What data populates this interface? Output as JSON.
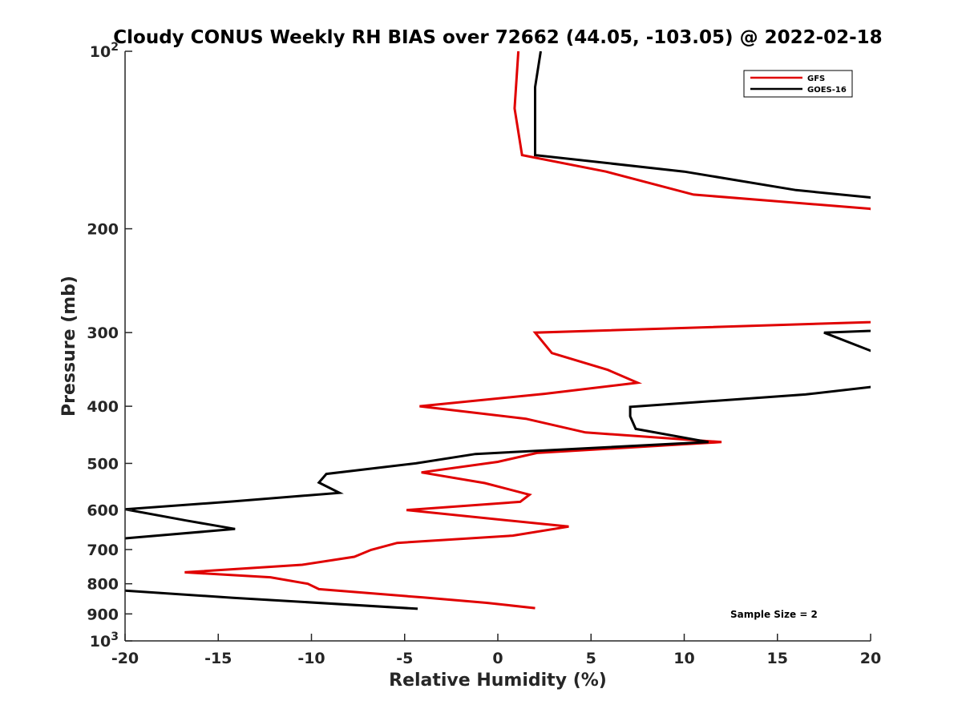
{
  "chart_data": {
    "type": "line",
    "title": "Cloudy CONUS Weekly RH BIAS over 72662 (44.05, -103.05) @ 2022-02-18",
    "xlabel": "Relative Humidity (%)",
    "ylabel": "Pressure (mb)",
    "xlim": [
      -20,
      20
    ],
    "ylim": [
      100,
      1000
    ],
    "yscale": "log",
    "y_reversed": true,
    "grid": false,
    "legend_position": "top-right",
    "x_ticks": [
      {
        "value": -20,
        "label": "-20"
      },
      {
        "value": -15,
        "label": "-15"
      },
      {
        "value": -10,
        "label": "-10"
      },
      {
        "value": -5,
        "label": "-5"
      },
      {
        "value": 0,
        "label": "0"
      },
      {
        "value": 5,
        "label": "5"
      },
      {
        "value": 10,
        "label": "10"
      },
      {
        "value": 15,
        "label": "15"
      },
      {
        "value": 20,
        "label": "20"
      }
    ],
    "y_ticks": [
      {
        "value": 100,
        "base": "10",
        "exp": "2"
      },
      {
        "value": 200,
        "base": "200",
        "exp": ""
      },
      {
        "value": 300,
        "base": "300",
        "exp": ""
      },
      {
        "value": 400,
        "base": "400",
        "exp": ""
      },
      {
        "value": 500,
        "base": "500",
        "exp": ""
      },
      {
        "value": 600,
        "base": "600",
        "exp": ""
      },
      {
        "value": 700,
        "base": "700",
        "exp": ""
      },
      {
        "value": 800,
        "base": "800",
        "exp": ""
      },
      {
        "value": 900,
        "base": "900",
        "exp": ""
      },
      {
        "value": 1000,
        "base": "10",
        "exp": "3"
      }
    ],
    "series": [
      {
        "name": "GFS",
        "color": "#e00000",
        "points": [
          [
            1.1,
            100
          ],
          [
            0.9,
            125
          ],
          [
            1.3,
            150
          ],
          [
            5.8,
            160
          ],
          [
            10.5,
            175
          ],
          [
            20,
            185
          ],
          [
            25,
            270
          ],
          [
            20,
            288
          ],
          [
            2,
            300
          ],
          [
            2.9,
            325
          ],
          [
            5.9,
            347
          ],
          [
            7.5,
            365
          ],
          [
            2.5,
            381
          ],
          [
            -4.2,
            400
          ],
          [
            1.5,
            420
          ],
          [
            4.7,
            443
          ],
          [
            12,
            460
          ],
          [
            2.1,
            480
          ],
          [
            0,
            497
          ],
          [
            -4.1,
            518
          ],
          [
            -0.7,
            540
          ],
          [
            1.7,
            565
          ],
          [
            1.2,
            581
          ],
          [
            -4.9,
            600
          ],
          [
            3.8,
            640
          ],
          [
            0.8,
            663
          ],
          [
            -5.4,
            682
          ],
          [
            -6.8,
            701
          ],
          [
            -7.7,
            720
          ],
          [
            -10.5,
            743
          ],
          [
            -16.8,
            765
          ],
          [
            -12.2,
            780
          ],
          [
            -10.2,
            800
          ],
          [
            -9.6,
            817
          ],
          [
            -4,
            844
          ],
          [
            -0.6,
            862
          ],
          [
            2,
            880
          ]
        ]
      },
      {
        "name": "GOES-16",
        "color": "#000000",
        "points": [
          [
            2.3,
            100
          ],
          [
            2.0,
            115
          ],
          [
            2.0,
            150
          ],
          [
            10,
            160
          ],
          [
            16,
            172
          ],
          [
            20,
            177
          ],
          [
            25,
            185
          ],
          [
            25,
            290
          ],
          [
            20,
            298
          ],
          [
            17.5,
            300
          ],
          [
            20,
            322
          ],
          [
            25,
            340
          ],
          [
            25,
            368
          ],
          [
            20,
            371
          ],
          [
            16.5,
            382
          ],
          [
            7.1,
            401
          ],
          [
            7.1,
            416
          ],
          [
            7.4,
            437
          ],
          [
            11.3,
            460
          ],
          [
            -1.2,
            482
          ],
          [
            -4.4,
            500
          ],
          [
            -9.2,
            521
          ],
          [
            -9.6,
            539
          ],
          [
            -8.5,
            561
          ],
          [
            -14.2,
            580
          ],
          [
            -20,
            598
          ],
          [
            -16.7,
            625
          ],
          [
            -14.1,
            646
          ],
          [
            -20,
            670
          ],
          [
            -25,
            680
          ],
          [
            -25,
            815
          ],
          [
            -20,
            822
          ],
          [
            -14.2,
            845
          ],
          [
            -4.3,
            882
          ]
        ]
      }
    ],
    "annotation": "Sample Size = 2"
  }
}
